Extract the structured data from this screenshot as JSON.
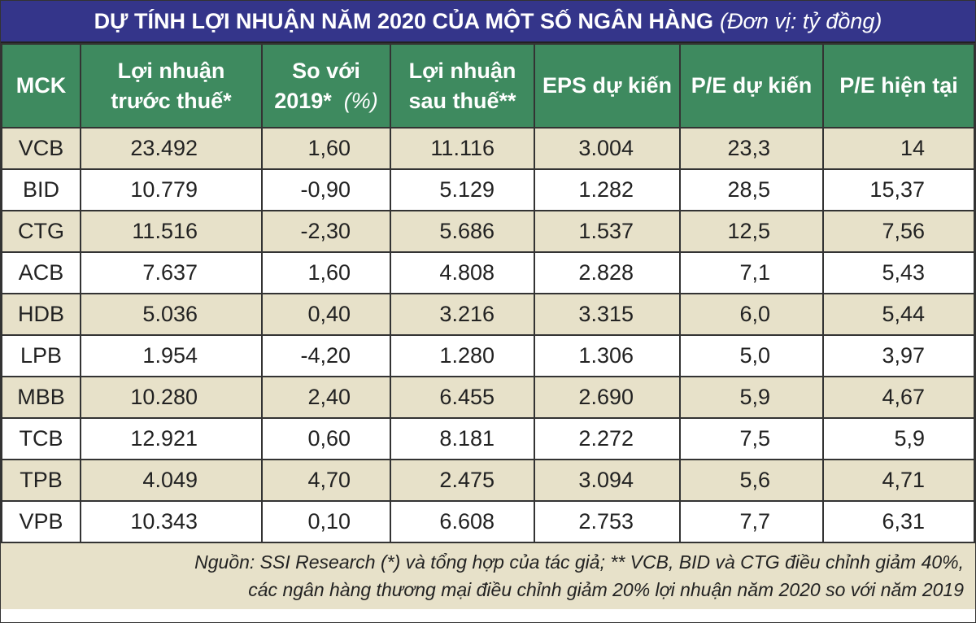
{
  "title": "DỰ TÍNH LỢI NHUẬN NĂM 2020 CỦA MỘT SỐ NGÂN HÀNG",
  "unit": "(Đơn vị: tỷ đồng)",
  "colors": {
    "title_bg": "#34358a",
    "header_bg": "#3e8a5f",
    "row_alt": "#e7e1c9"
  },
  "headers": [
    {
      "l1": "MCK",
      "l2": ""
    },
    {
      "l1": "Lợi nhuận",
      "l2": "trước thuế*"
    },
    {
      "l1": "So với",
      "l2": "2019*",
      "l2i": "(%)"
    },
    {
      "l1": "Lợi nhuận",
      "l2": "sau thuế**"
    },
    {
      "l1": "EPS dự kiến",
      "l2": ""
    },
    {
      "l1": "P/E dự kiến",
      "l2": ""
    },
    {
      "l1": "P/E hiện tại",
      "l2": ""
    }
  ],
  "rows": [
    [
      "VCB",
      "23.492",
      "1,60",
      "11.116",
      "3.004",
      "23,3",
      "14"
    ],
    [
      "BID",
      "10.779",
      "-0,90",
      "5.129",
      "1.282",
      "28,5",
      "15,37"
    ],
    [
      "CTG",
      "11.516",
      "-2,30",
      "5.686",
      "1.537",
      "12,5",
      "7,56"
    ],
    [
      "ACB",
      "7.637",
      "1,60",
      "4.808",
      "2.828",
      "7,1",
      "5,43"
    ],
    [
      "HDB",
      "5.036",
      "0,40",
      "3.216",
      "3.315",
      "6,0",
      "5,44"
    ],
    [
      "LPB",
      "1.954",
      "-4,20",
      "1.280",
      "1.306",
      "5,0",
      "3,97"
    ],
    [
      "MBB",
      "10.280",
      "2,40",
      "6.455",
      "2.690",
      "5,9",
      "4,67"
    ],
    [
      "TCB",
      "12.921",
      "0,60",
      "8.181",
      "2.272",
      "7,5",
      "5,9"
    ],
    [
      "TPB",
      "4.049",
      "4,70",
      "2.475",
      "3.094",
      "5,6",
      "4,71"
    ],
    [
      "VPB",
      "10.343",
      "0,10",
      "6.608",
      "2.753",
      "7,7",
      "6,31"
    ]
  ],
  "footnote": {
    "line1": "Nguồn: SSI Research (*) và tổng hợp của tác giả; ** VCB, BID và CTG điều chỉnh giảm 40%,",
    "line2": "các ngân hàng thương mại điều chỉnh giảm 20% lợi nhuận năm 2020 so với năm 2019"
  }
}
